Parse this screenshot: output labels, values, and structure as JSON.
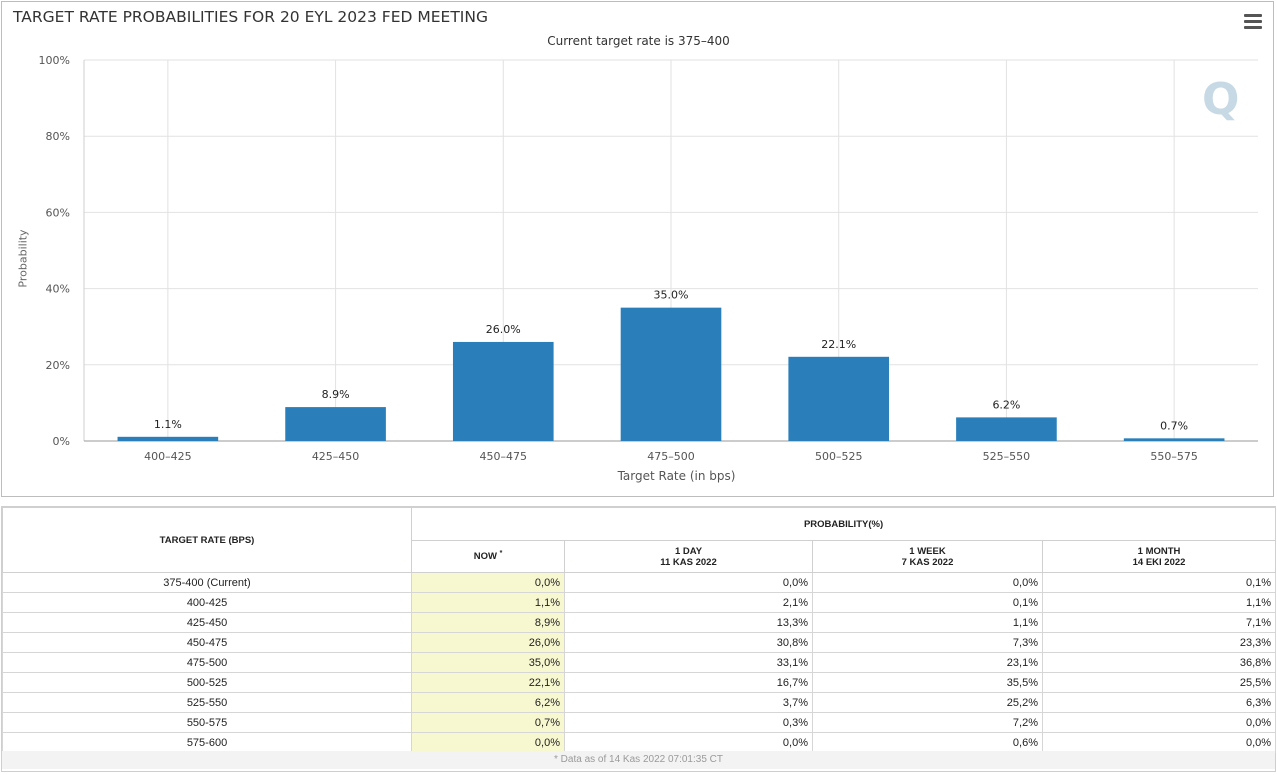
{
  "chart_data": {
    "type": "bar",
    "title": "TARGET RATE PROBABILITIES FOR 20 EYL 2023 FED MEETING",
    "subtitle": "Current target rate is 375–400",
    "xlabel": "Target Rate (in bps)",
    "ylabel": "Probability",
    "categories": [
      "400–425",
      "425–450",
      "450–475",
      "475–500",
      "500–525",
      "525–550",
      "550–575"
    ],
    "values": [
      1.1,
      8.9,
      26.0,
      35.0,
      22.1,
      6.2,
      0.7
    ],
    "data_labels": [
      "1.1%",
      "8.9%",
      "26.0%",
      "35.0%",
      "22.1%",
      "6.2%",
      "0.7%"
    ],
    "ylim": [
      0,
      100
    ],
    "yticks": [
      "0%",
      "20%",
      "40%",
      "60%",
      "80%",
      "100%"
    ],
    "grid": true,
    "bar_color": "#2a7fba"
  },
  "watermark": "Q",
  "menu": {
    "icon": "hamburger-menu-icon"
  },
  "table": {
    "header_rate": "TARGET RATE (BPS)",
    "header_prob": "PROBABILITY(%)",
    "col_now": "NOW",
    "col_now_mark": "*",
    "col_day": {
      "line1": "1 DAY",
      "line2": "11 KAS 2022"
    },
    "col_week": {
      "line1": "1 WEEK",
      "line2": "7 KAS 2022"
    },
    "col_month": {
      "line1": "1 MONTH",
      "line2": "14 EKI 2022"
    },
    "rows": [
      {
        "rate": "375-400 (Current)",
        "now": "0,0%",
        "day": "0,0%",
        "week": "0,0%",
        "month": "0,1%"
      },
      {
        "rate": "400-425",
        "now": "1,1%",
        "day": "2,1%",
        "week": "0,1%",
        "month": "1,1%"
      },
      {
        "rate": "425-450",
        "now": "8,9%",
        "day": "13,3%",
        "week": "1,1%",
        "month": "7,1%"
      },
      {
        "rate": "450-475",
        "now": "26,0%",
        "day": "30,8%",
        "week": "7,3%",
        "month": "23,3%"
      },
      {
        "rate": "475-500",
        "now": "35,0%",
        "day": "33,1%",
        "week": "23,1%",
        "month": "36,8%"
      },
      {
        "rate": "500-525",
        "now": "22,1%",
        "day": "16,7%",
        "week": "35,5%",
        "month": "25,5%"
      },
      {
        "rate": "525-550",
        "now": "6,2%",
        "day": "3,7%",
        "week": "25,2%",
        "month": "6,3%"
      },
      {
        "rate": "550-575",
        "now": "0,7%",
        "day": "0,3%",
        "week": "7,2%",
        "month": "0,0%"
      },
      {
        "rate": "575-600",
        "now": "0,0%",
        "day": "0,0%",
        "week": "0,6%",
        "month": "0,0%"
      }
    ],
    "footnote": "* Data as of 14 Kas 2022 07:01:35 CT",
    "now_highlight": "#f7f7d0"
  }
}
